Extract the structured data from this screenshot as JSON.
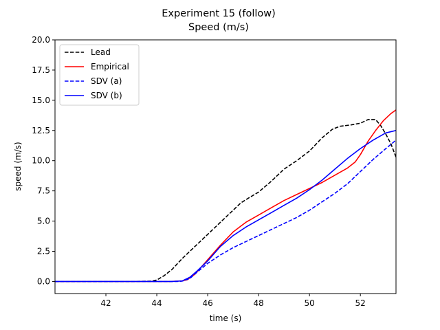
{
  "chart_data": {
    "type": "line",
    "title": "Experiment 15 (follow)",
    "subtitle": "Speed (m/s)",
    "xlabel": "time (s)",
    "ylabel": "speed (m/s)",
    "xlim": [
      40.0,
      53.4
    ],
    "ylim": [
      -1.0,
      20.0
    ],
    "xticks": [
      42,
      44,
      46,
      48,
      50,
      52
    ],
    "xtick_labels": [
      "42",
      "44",
      "46",
      "48",
      "50",
      "52"
    ],
    "yticks": [
      0.0,
      2.5,
      5.0,
      7.5,
      10.0,
      12.5,
      15.0,
      17.5,
      20.0
    ],
    "ytick_labels": [
      "0.0",
      "2.5",
      "5.0",
      "7.5",
      "10.0",
      "12.5",
      "15.0",
      "17.5",
      "20.0"
    ],
    "grid": false,
    "legend_position": "top-left",
    "series": [
      {
        "name": "Lead",
        "color": "#000000",
        "dash": "dashed",
        "x": [
          40.0,
          43.0,
          43.8,
          44.0,
          44.3,
          44.6,
          45.0,
          45.5,
          46.0,
          46.5,
          47.0,
          47.3,
          47.6,
          48.0,
          48.5,
          49.0,
          49.5,
          50.0,
          50.5,
          50.9,
          51.2,
          51.6,
          52.0,
          52.3,
          52.6,
          52.8,
          53.0,
          53.2,
          53.4
        ],
        "y": [
          0.0,
          0.0,
          0.03,
          0.12,
          0.5,
          1.0,
          1.9,
          2.9,
          3.9,
          4.9,
          5.9,
          6.5,
          6.9,
          7.4,
          8.3,
          9.3,
          10.0,
          10.8,
          11.9,
          12.6,
          12.85,
          12.95,
          13.1,
          13.4,
          13.4,
          12.9,
          12.2,
          11.4,
          10.3
        ]
      },
      {
        "name": "Empirical",
        "color": "#ff0000",
        "dash": "solid",
        "x": [
          40.0,
          44.5,
          45.0,
          45.2,
          45.5,
          46.0,
          46.5,
          47.0,
          47.5,
          48.0,
          48.5,
          49.0,
          49.5,
          50.0,
          50.5,
          51.0,
          51.5,
          51.8,
          52.0,
          52.3,
          52.6,
          52.9,
          53.2,
          53.4
        ],
        "y": [
          0.0,
          0.0,
          0.05,
          0.15,
          0.6,
          1.8,
          3.0,
          4.1,
          4.9,
          5.5,
          6.1,
          6.7,
          7.2,
          7.7,
          8.2,
          8.8,
          9.4,
          9.9,
          10.5,
          11.6,
          12.5,
          13.3,
          13.9,
          14.2
        ]
      },
      {
        "name": "SDV (a)",
        "color": "#0000ff",
        "dash": "dashed",
        "x": [
          40.0,
          44.8,
          45.0,
          45.3,
          45.6,
          46.0,
          46.5,
          47.0,
          47.5,
          48.0,
          48.5,
          49.0,
          49.5,
          50.0,
          50.5,
          51.0,
          51.5,
          52.0,
          52.5,
          53.0,
          53.4
        ],
        "y": [
          0.0,
          0.0,
          0.03,
          0.25,
          0.8,
          1.5,
          2.2,
          2.8,
          3.3,
          3.8,
          4.3,
          4.8,
          5.3,
          5.9,
          6.6,
          7.3,
          8.1,
          9.1,
          10.1,
          11.0,
          11.7
        ]
      },
      {
        "name": "SDV (b)",
        "color": "#0000ff",
        "dash": "solid",
        "x": [
          40.0,
          44.6,
          45.0,
          45.3,
          45.6,
          46.0,
          46.5,
          47.0,
          47.5,
          48.0,
          48.5,
          49.0,
          49.5,
          50.0,
          50.5,
          51.0,
          51.5,
          52.0,
          52.5,
          53.0,
          53.4
        ],
        "y": [
          0.0,
          0.0,
          0.05,
          0.35,
          0.9,
          1.7,
          2.9,
          3.8,
          4.5,
          5.1,
          5.7,
          6.3,
          6.9,
          7.6,
          8.4,
          9.3,
          10.2,
          11.0,
          11.7,
          12.3,
          12.5
        ]
      }
    ]
  }
}
